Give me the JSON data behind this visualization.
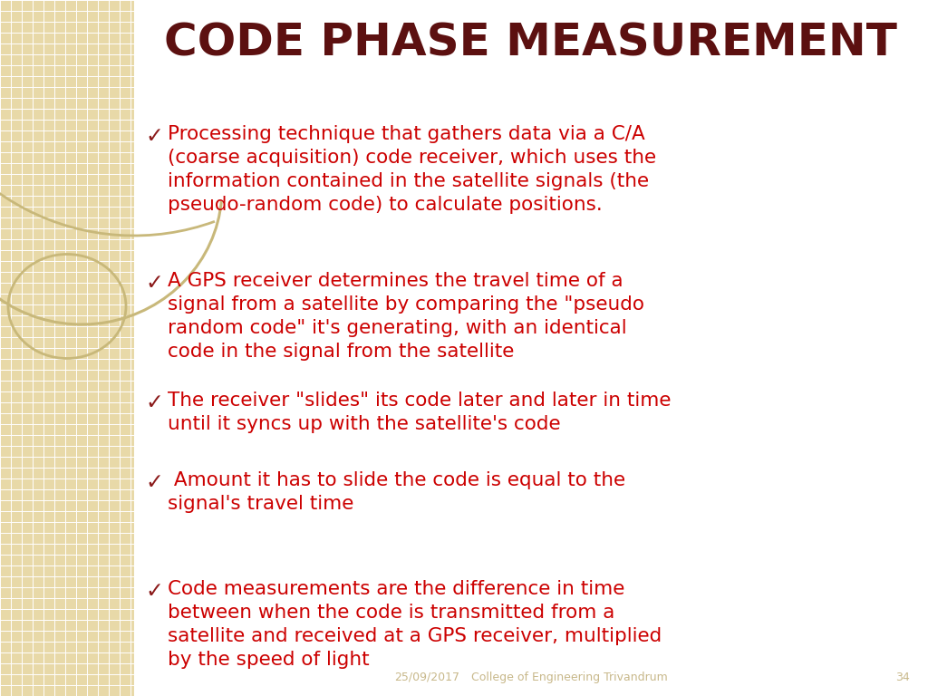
{
  "title": "CODE PHASE MEASUREMENT",
  "title_color": "#5C1010",
  "title_fontsize": 36,
  "bg_color": "#FFFFFF",
  "left_panel_color": "#E8D9A8",
  "grid_color": "#FFFFFF",
  "text_color": "#CC0000",
  "check_color": "#8B1A1A",
  "footer_color": "#C8B88A",
  "footer_date": "25/09/2017",
  "footer_org": "College of Engineering Trivandrum",
  "footer_num": "34",
  "bullet_lines": [
    [
      "Processing technique that gathers data via a C/A",
      "(coarse acquisition) code receiver, which uses the",
      "information contained in the satellite signals (the",
      "pseudo-random code) to calculate positions."
    ],
    [
      "A GPS receiver determines the travel time of a",
      "signal from a satellite by comparing the \"pseudo",
      "random code\" it's generating, with an identical",
      "code in the signal from the satellite"
    ],
    [
      "The receiver \"slides\" its code later and later in time",
      "until it syncs up with the satellite's code"
    ],
    [
      " Amount it has to slide the code is equal to the",
      "signal's travel time"
    ],
    [
      "Code measurements are the difference in time",
      "between when the code is transmitted from a",
      "satellite and received at a GPS receiver, multiplied",
      "by the speed of light"
    ]
  ],
  "bullet_y_starts": [
    630,
    468,
    336,
    248,
    128
  ],
  "arc_color": "#C8B87A",
  "font_size": 15.5,
  "check_fontsize": 17
}
